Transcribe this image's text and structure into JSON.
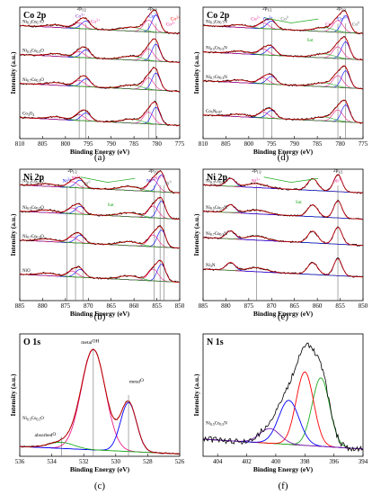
{
  "figure": {
    "panels": [
      {
        "id": "a",
        "caption": "(a)",
        "title": "Co 2p",
        "xlabel": "Binding Energy (eV)",
        "ylabel": "Intensity (a.u.)",
        "xticks": [
          "810",
          "805",
          "800",
          "795",
          "790",
          "785",
          "780",
          "775"
        ],
        "xmin": 775,
        "xmax": 810,
        "samples": [
          {
            "label": "Ni0.3Co0.7O",
            "base": 0.78
          },
          {
            "label": "Ni0.5Co0.5O",
            "base": 0.56
          },
          {
            "label": "Ni0.7Co0.3O",
            "base": 0.34
          },
          {
            "label": "Co3O4",
            "base": 0.08
          }
        ],
        "peaks": [
          780.2,
          781.8,
          785.5,
          795.5,
          797.0,
          802.0
        ],
        "refs": [
          781.8,
          780.2,
          797.0,
          795.5
        ],
        "annotations": [
          {
            "text": "2p1/2",
            "x": 796.5,
            "y": 0.98,
            "color": "#000000"
          },
          {
            "text": "2p3/2",
            "x": 781,
            "y": 0.98,
            "color": "#000000"
          },
          {
            "text": "Co3+",
            "x": 796.8,
            "y": 0.92,
            "color": "#7a1fb5"
          },
          {
            "text": "Co2+",
            "x": 793.5,
            "y": 0.88,
            "color": "#e91e8c"
          },
          {
            "text": "Co3+",
            "x": 780.8,
            "y": 0.92,
            "color": "#0000ff"
          },
          {
            "text": "Co2+",
            "x": 777,
            "y": 0.86,
            "color": "#e91e8c"
          },
          {
            "text": "Co2+",
            "x": 776,
            "y": 0.9,
            "color": "#ff0000"
          }
        ]
      },
      {
        "id": "d",
        "caption": "(d)",
        "title": "Co 2p",
        "xlabel": "Binding Energy (eV)",
        "ylabel": "Intensity (a.u.)",
        "xticks": [
          "810",
          "805",
          "800",
          "795",
          "790",
          "785",
          "780",
          "775"
        ],
        "xmin": 775,
        "xmax": 810,
        "samples": [
          {
            "label": "Ni0.3Co0.7N",
            "base": 0.78
          },
          {
            "label": "Ni0.5Co0.5N",
            "base": 0.58
          },
          {
            "label": "Ni0.7Co0.3N",
            "base": 0.36
          },
          {
            "label": "Co5N0.87",
            "base": 0.1
          }
        ],
        "peaks": [
          778.8,
          780.5,
          783.5,
          795.0,
          796.8,
          802.0
        ],
        "refs": [
          778.8,
          780.5,
          795.0,
          796.8
        ],
        "annotations": [
          {
            "text": "2p1/2",
            "x": 796,
            "y": 0.98,
            "color": "#000000"
          },
          {
            "text": "2p3/2",
            "x": 779.8,
            "y": 0.98,
            "color": "#000000"
          },
          {
            "text": "Co2+",
            "x": 798.5,
            "y": 0.9,
            "color": "#e91e8c"
          },
          {
            "text": "Co3+",
            "x": 795.8,
            "y": 0.9,
            "color": "#0000ff"
          },
          {
            "text": "Co0",
            "x": 792.2,
            "y": 0.9,
            "color": "#666666"
          },
          {
            "text": "Sat.",
            "x": 786.5,
            "y": 0.74,
            "color": "#22aa22"
          },
          {
            "text": "Co2+",
            "x": 782.2,
            "y": 0.86,
            "color": "#e91e8c"
          },
          {
            "text": "Co3+",
            "x": 779.6,
            "y": 0.9,
            "color": "#0000ff"
          },
          {
            "text": "Co0",
            "x": 776.6,
            "y": 0.86,
            "color": "#666666"
          }
        ]
      },
      {
        "id": "b",
        "caption": "(b)",
        "title": "Ni 2p",
        "xlabel": "Binding Energy (eV)",
        "ylabel": "Intensity (a.u.)",
        "xticks": [
          "885",
          "880",
          "875",
          "870",
          "865",
          "860",
          "855",
          "850"
        ],
        "xmin": 850,
        "xmax": 885,
        "samples": [
          {
            "label": "Ni0.3Co0.7O",
            "base": 0.8
          },
          {
            "label": "Ni0.5Co0.5O",
            "base": 0.6
          },
          {
            "label": "Ni0.7Co0.3O",
            "base": 0.38
          },
          {
            "label": "NiO",
            "base": 0.12
          }
        ],
        "peaks": [
          854.0,
          855.8,
          861.0,
          871.8,
          873.5,
          879.0
        ],
        "refs": [
          874.7,
          872.8,
          871.2,
          855.6,
          854.3,
          853.4
        ],
        "annotations": [
          {
            "text": "2p1/2",
            "x": 873.5,
            "y": 0.98,
            "color": "#000000"
          },
          {
            "text": "2p3/2",
            "x": 855.8,
            "y": 0.98,
            "color": "#000000"
          },
          {
            "text": "Ni3+",
            "x": 874.7,
            "y": 0.9,
            "color": "#0000ff"
          },
          {
            "text": "Ni2+",
            "x": 872.7,
            "y": 0.92,
            "color": "#e91e8c"
          },
          {
            "text": "Ni0",
            "x": 870.3,
            "y": 0.88,
            "color": "#666666"
          },
          {
            "text": "Sat.",
            "x": 865,
            "y": 0.72,
            "color": "#22aa22"
          },
          {
            "text": "Ni3+",
            "x": 856.3,
            "y": 0.9,
            "color": "#0000ff"
          },
          {
            "text": "Ni2+",
            "x": 854.6,
            "y": 0.92,
            "color": "#e91e8c"
          },
          {
            "text": "Ni0",
            "x": 852.6,
            "y": 0.88,
            "color": "#666666"
          }
        ]
      },
      {
        "id": "e",
        "caption": "(e)",
        "title": "Ni 2p",
        "xlabel": "Binding Energy (eV)",
        "ylabel": "Intensity (a.u.)",
        "xticks": [
          "885",
          "880",
          "875",
          "870",
          "865",
          "860",
          "855",
          "850"
        ],
        "xmin": 850,
        "xmax": 885,
        "samples": [
          {
            "label": "Ni0.3Co0.7N",
            "base": 0.8
          },
          {
            "label": "Ni0.5Co0.5N",
            "base": 0.6
          },
          {
            "label": "Ni0.7Co0.3N",
            "base": 0.4
          },
          {
            "label": "Ni3N",
            "base": 0.16
          }
        ],
        "peaks": [
          855.5,
          861.0,
          873.3,
          879.0
        ],
        "refs": [
          873.3,
          855.5
        ],
        "annotations": [
          {
            "text": "2p1/2",
            "x": 873.3,
            "y": 0.98,
            "color": "#000000"
          },
          {
            "text": "2p3/2",
            "x": 855.5,
            "y": 0.98,
            "color": "#000000"
          },
          {
            "text": "Ni3+",
            "x": 873.5,
            "y": 0.9,
            "color": "#e91e8c"
          },
          {
            "text": "Sat.",
            "x": 864,
            "y": 0.74,
            "color": "#22aa22"
          },
          {
            "text": "Ni3+",
            "x": 855.5,
            "y": 0.9,
            "color": "#e91e8c"
          }
        ]
      },
      {
        "id": "c",
        "caption": "(c)",
        "title": "O 1s",
        "xlabel": "Binding Energy (eV)",
        "ylabel": "Intensity (a.u.)",
        "xticks": [
          "536",
          "534",
          "532",
          "530",
          "528",
          "526"
        ],
        "xmin": 526,
        "xmax": 536,
        "sample_label": "Ni0.5Co0.5O",
        "components": [
          {
            "name": "metal-OH",
            "center": 531.4,
            "height": 0.82,
            "sigma": 0.75,
            "color": "#e91e8c"
          },
          {
            "name": "metal-O",
            "center": 529.2,
            "height": 0.4,
            "sigma": 0.5,
            "color": "#0000ff"
          },
          {
            "name": "absorbed-O",
            "center": 533.4,
            "height": 0.05,
            "sigma": 0.8,
            "color": "#22aa22"
          }
        ],
        "annotations": [
          {
            "text": "metal-OH",
            "x": 531.6,
            "y": 0.92,
            "color": "#000000"
          },
          {
            "text": "metal-O",
            "x": 528.7,
            "y": 0.6,
            "color": "#000000"
          },
          {
            "text": "absorbed-O",
            "x": 534.4,
            "y": 0.16,
            "color": "#000000"
          }
        ]
      },
      {
        "id": "f",
        "caption": "(f)",
        "title": "N 1s",
        "xlabel": "Binding Energy (eV)",
        "ylabel": "Intensity (a.u.)",
        "xticks": [
          "404",
          "402",
          "400",
          "398",
          "396",
          "394"
        ],
        "xmin": 394,
        "xmax": 405,
        "sample_label": "Ni0.5Co0.5N",
        "components": [
          {
            "name": "",
            "center": 396.9,
            "height": 0.56,
            "sigma": 0.6,
            "color": "#22aa22"
          },
          {
            "name": "",
            "center": 398.0,
            "height": 0.6,
            "sigma": 0.6,
            "color": "#ff0000"
          },
          {
            "name": "",
            "center": 399.1,
            "height": 0.36,
            "sigma": 0.7,
            "color": "#0000ff"
          },
          {
            "name": "",
            "center": 400.4,
            "height": 0.12,
            "sigma": 0.7,
            "color": "#7a1fb5"
          }
        ]
      }
    ]
  },
  "chart_data": [
    {
      "type": "line",
      "title": "Co 2p",
      "xlabel": "Binding Energy (eV)",
      "ylabel": "Intensity (a.u.)",
      "xlim": [
        810,
        775
      ],
      "series": [
        {
          "name": "Ni0.3Co0.7O"
        },
        {
          "name": "Ni0.5Co0.5O"
        },
        {
          "name": "Ni0.7Co0.3O"
        },
        {
          "name": "Co3O4"
        }
      ]
    },
    {
      "type": "line",
      "title": "Ni 2p",
      "xlabel": "Binding Energy (eV)",
      "ylabel": "Intensity (a.u.)",
      "xlim": [
        885,
        850
      ],
      "series": [
        {
          "name": "Ni0.3Co0.7O"
        },
        {
          "name": "Ni0.5Co0.5O"
        },
        {
          "name": "Ni0.7Co0.3O"
        },
        {
          "name": "NiO"
        }
      ]
    },
    {
      "type": "line",
      "title": "O 1s",
      "xlabel": "Binding Energy (eV)",
      "ylabel": "Intensity (a.u.)",
      "xlim": [
        536,
        526
      ],
      "series": [
        {
          "name": "metal-OH",
          "peak": 531.4
        },
        {
          "name": "metal-O",
          "peak": 529.2
        },
        {
          "name": "absorbed-O",
          "peak": 533.4
        }
      ]
    },
    {
      "type": "line",
      "title": "Co 2p",
      "xlabel": "Binding Energy (eV)",
      "ylabel": "Intensity (a.u.)",
      "xlim": [
        810,
        775
      ],
      "series": [
        {
          "name": "Ni0.3Co0.7N"
        },
        {
          "name": "Ni0.5Co0.5N"
        },
        {
          "name": "Ni0.7Co0.3N"
        },
        {
          "name": "Co5N0.87"
        }
      ]
    },
    {
      "type": "line",
      "title": "Ni 2p",
      "xlabel": "Binding Energy (eV)",
      "ylabel": "Intensity (a.u.)",
      "xlim": [
        885,
        850
      ],
      "series": [
        {
          "name": "Ni0.3Co0.7N"
        },
        {
          "name": "Ni0.5Co0.5N"
        },
        {
          "name": "Ni0.7Co0.3N"
        },
        {
          "name": "Ni3N"
        }
      ]
    },
    {
      "type": "line",
      "title": "N 1s",
      "xlabel": "Binding Energy (eV)",
      "ylabel": "Intensity (a.u.)",
      "xlim": [
        405,
        394
      ],
      "series": [
        {
          "name": "Ni0.5Co0.5N"
        }
      ]
    }
  ]
}
